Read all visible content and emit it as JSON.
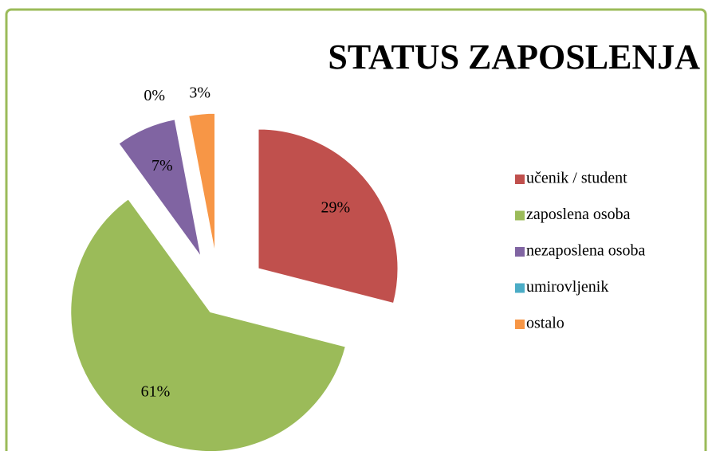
{
  "chart_data": {
    "type": "pie",
    "title": "STATUS ZAPOSLENJA",
    "categories": [
      "učenik / student",
      "zaposlena osoba",
      "nezaposlena osoba",
      "umirovljenik",
      "ostalo"
    ],
    "values": [
      29,
      61,
      7,
      0,
      3
    ],
    "value_labels": [
      "29%",
      "61%",
      "7%",
      "0%",
      "3%"
    ],
    "colors": [
      "#c0504d",
      "#9bbb59",
      "#8064a2",
      "#4bacc6",
      "#f79646"
    ],
    "legend": "right"
  }
}
